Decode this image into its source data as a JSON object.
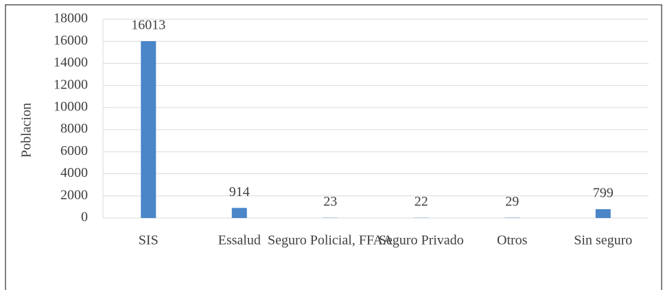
{
  "chart_data": {
    "type": "bar",
    "y_label": "Poblacion",
    "categories": [
      "SIS",
      "Essalud",
      "Seguro Policial, FFAA",
      "Seguro Privado",
      "Otros",
      "Sin seguro"
    ],
    "values": [
      16013,
      914,
      23,
      22,
      29,
      799
    ],
    "color": "#4a86c8",
    "ylim": [
      0,
      18000
    ],
    "yticks": [
      0,
      2000,
      4000,
      6000,
      8000,
      10000,
      12000,
      14000,
      16000,
      18000
    ],
    "grid": true
  }
}
